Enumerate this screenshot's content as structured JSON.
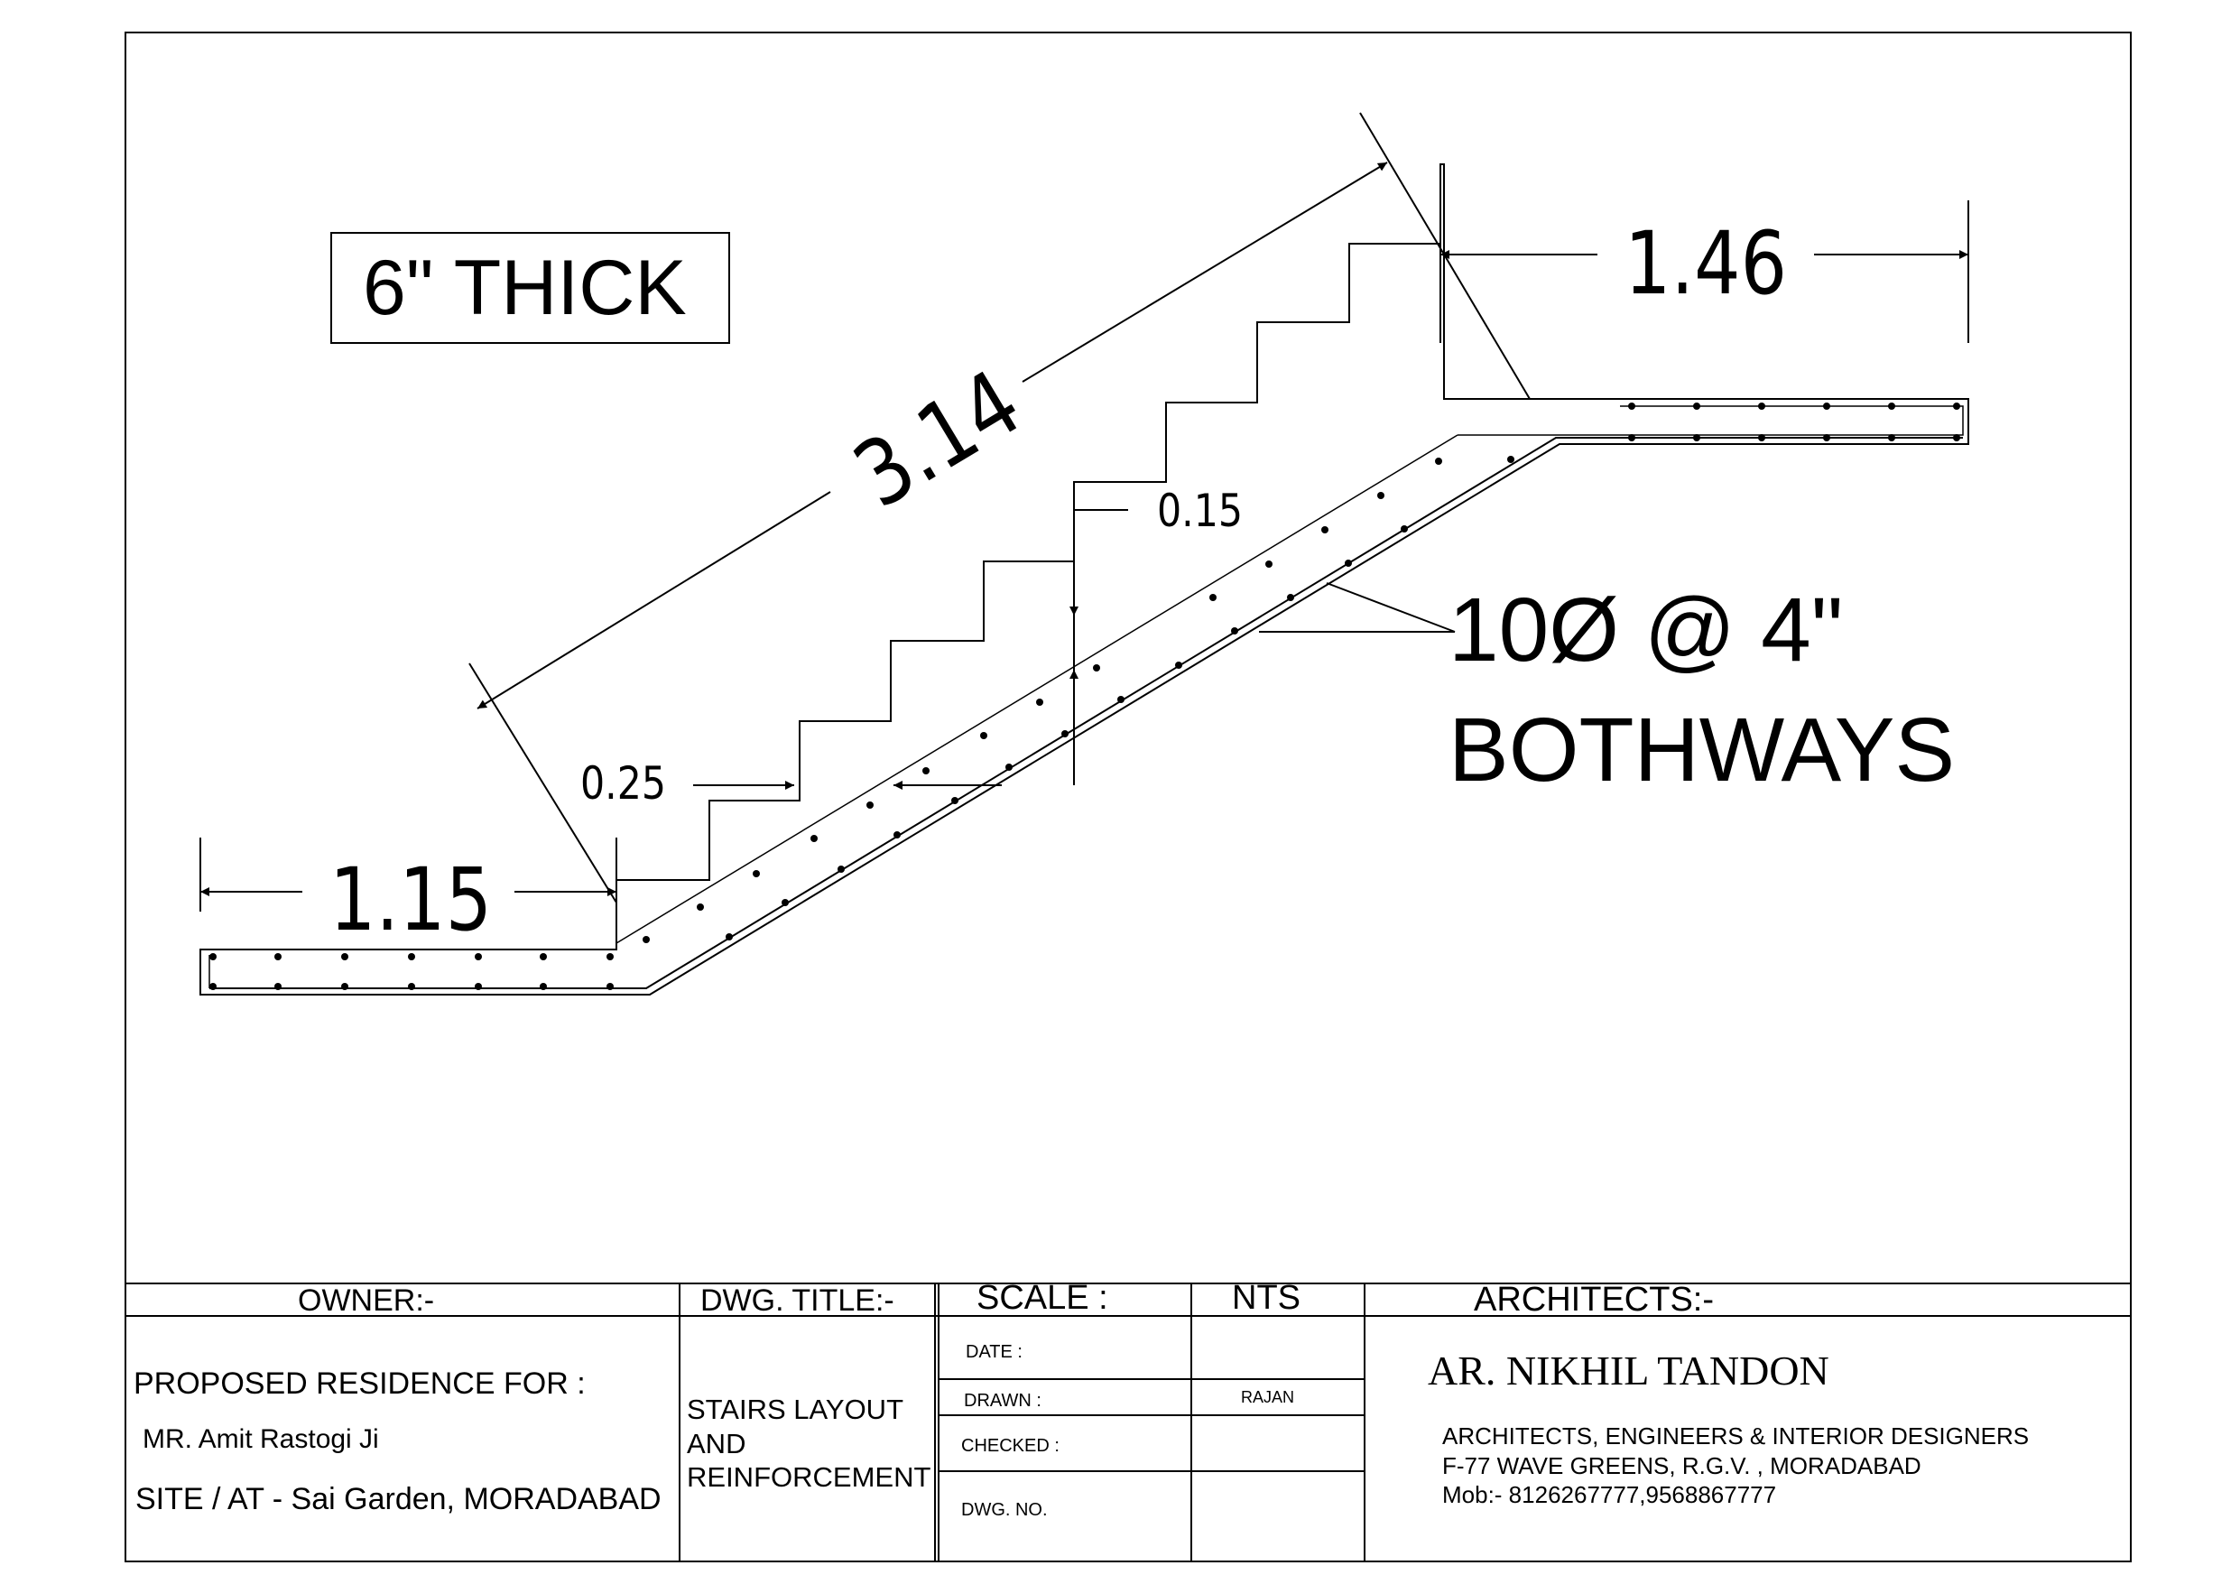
{
  "drawing": {
    "thickness_label": "6\" THICK",
    "dims": {
      "landing_left": "1.15",
      "landing_right": "1.46",
      "flight_length": "3.14",
      "tread": "0.25",
      "riser": "0.15"
    },
    "rebar_line1": "10Ø @ 4\"",
    "rebar_line2": "BOTHWAYS"
  },
  "title_block": {
    "owner_header": "OWNER:-",
    "dwg_title_header": "DWG. TITLE:-",
    "scale_label": "SCALE :",
    "scale_value": "NTS",
    "architects_header": "ARCHITECTS:-",
    "owner_line1": "PROPOSED RESIDENCE FOR :",
    "owner_line2": "MR. Amit Rastogi Ji",
    "owner_line3": "SITE / AT - Sai Garden, MORADABAD",
    "title_line1": "STAIRS LAYOUT",
    "title_line2": "AND",
    "title_line3": "REINFORCEMENT",
    "date_label": "DATE :",
    "date_value": "",
    "drawn_label": "DRAWN :",
    "drawn_value": "RAJAN",
    "checked_label": "CHECKED :",
    "checked_value": "",
    "dwg_no_label": "DWG. NO.",
    "dwg_no_value": "",
    "architect_name": "AR. NIKHIL TANDON",
    "architect_line1": "ARCHITECTS, ENGINEERS & INTERIOR DESIGNERS",
    "architect_line2": "F-77 WAVE GREENS, R.G.V. , MORADABAD",
    "architect_line3": "Mob:- 8126267777,9568867777"
  }
}
